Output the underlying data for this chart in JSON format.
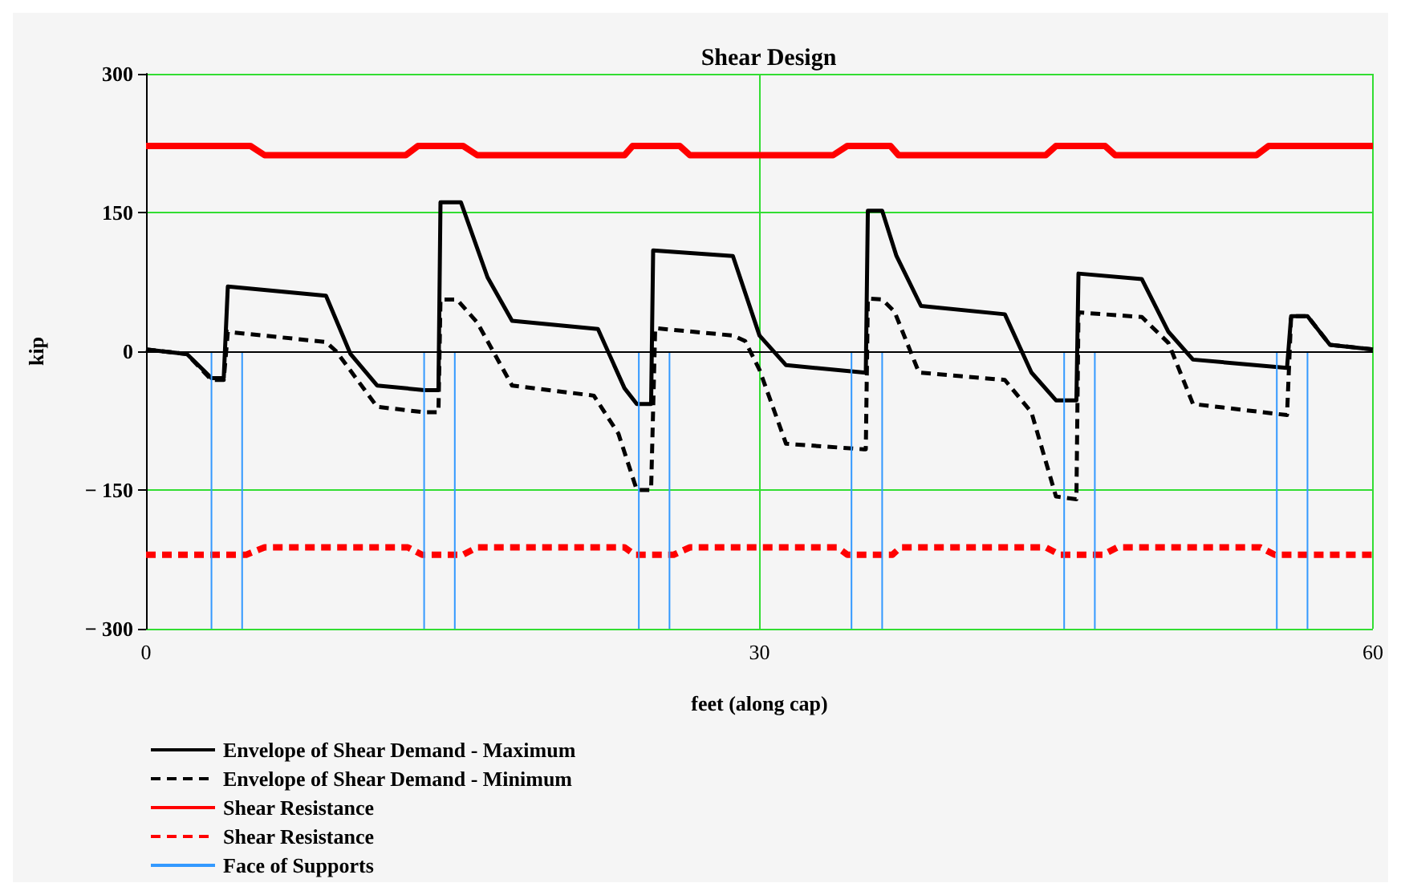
{
  "chart_data": {
    "type": "line",
    "title": "Shear Design",
    "xlabel": "feet (along cap)",
    "ylabel": "kip",
    "xlim": [
      0,
      60
    ],
    "xticks": [
      0,
      30,
      60
    ],
    "ylim": [
      -300,
      300
    ],
    "yticks": [
      300,
      150,
      0,
      {
        "value": -150,
        "label": "− 150"
      },
      {
        "value": -300,
        "label": "− 300"
      }
    ],
    "grid": true,
    "legend": "bottom left",
    "marker": "none",
    "ref_lines": [
      {
        "axis": "y",
        "value": 0,
        "color": "#000000"
      }
    ],
    "series": [
      {
        "name": "Envelope of Shear Demand - Maximum",
        "color": "#000000",
        "line_style": "solid",
        "x": [
          0,
          2,
          3.2,
          3.8,
          4,
          8.8,
          10,
          11.3,
          13.6,
          14.3,
          14.4,
          15.4,
          16.7,
          17.9,
          22.1,
          23.4,
          24,
          24.7,
          24.8,
          28.7,
          30,
          31.3,
          35.1,
          35.2,
          35.3,
          36,
          36.7,
          37.9,
          42,
          43.3,
          44.5,
          45.5,
          45.6,
          48.7,
          50,
          51.2,
          55.8,
          56,
          56.8,
          57.9,
          60
        ],
        "values": [
          2,
          -3,
          -29,
          -29,
          70,
          60,
          -3,
          -37,
          -42,
          -42,
          161,
          161,
          80,
          33,
          24,
          -40,
          -57,
          -57,
          109,
          103,
          17,
          -15,
          -23,
          -23,
          152,
          152,
          103,
          49,
          40,
          -23,
          -53,
          -53,
          84,
          78,
          21,
          -9,
          -18,
          38,
          38,
          7,
          2
        ]
      },
      {
        "name": "Envelope of Shear Demand - Minimum",
        "color": "#000000",
        "line_style": "dashed",
        "x": [
          0,
          2,
          3.2,
          3.8,
          4,
          8.8,
          9.3,
          11.3,
          13.6,
          14.3,
          14.4,
          15.2,
          16.2,
          17.9,
          21.9,
          23.1,
          24,
          24.7,
          24.9,
          28.7,
          29.3,
          30,
          31.3,
          35.1,
          35.2,
          35.3,
          36,
          36.6,
          37.8,
          42,
          43.3,
          44.5,
          45.5,
          45.6,
          48.7,
          50,
          51.2,
          55.8,
          56,
          56.8,
          57.9,
          60
        ],
        "values": [
          2,
          -3,
          -31,
          -31,
          21,
          10,
          0,
          -60,
          -66,
          -66,
          56,
          56,
          31,
          -37,
          -48,
          -89,
          -150,
          -150,
          25,
          17,
          11,
          -20,
          -100,
          -106,
          -106,
          57,
          56,
          43,
          -23,
          -31,
          -66,
          -157,
          -160,
          42,
          37,
          9,
          -57,
          -69,
          38,
          38,
          7,
          2
        ]
      },
      {
        "name": "Shear Resistance",
        "color": "#ff0000",
        "line_style": "solid",
        "x": [
          0,
          5.1,
          5.8,
          12.7,
          13.3,
          15.5,
          16.2,
          23.4,
          23.8,
          26.1,
          26.6,
          33.6,
          34.3,
          36.4,
          36.8,
          44,
          44.5,
          46.9,
          47.4,
          54.3,
          54.9,
          60
        ],
        "values": [
          222,
          222,
          212,
          212,
          222,
          222,
          212,
          212,
          222,
          222,
          212,
          212,
          222,
          222,
          212,
          212,
          222,
          222,
          212,
          212,
          222,
          222
        ]
      },
      {
        "name": "Shear Resistance",
        "color": "#ff0000",
        "line_style": "dashed",
        "x": [
          0,
          4.9,
          5.8,
          12.8,
          13.5,
          15.5,
          16.2,
          23.4,
          23.9,
          25.8,
          26.6,
          33.8,
          34.3,
          36.5,
          36.9,
          44,
          44.7,
          46.8,
          47.5,
          54.5,
          55.2,
          60
        ],
        "values": [
          -220,
          -220,
          -212,
          -212,
          -220,
          -220,
          -212,
          -212,
          -220,
          -220,
          -212,
          -212,
          -220,
          -220,
          -212,
          -212,
          -220,
          -220,
          -212,
          -212,
          -220,
          -220
        ]
      },
      {
        "name": "Face of Supports",
        "color": "#3399ff",
        "line_style": "solid",
        "x": [
          3.2,
          3.2,
          null,
          4.7,
          4.7,
          null,
          13.6,
          13.6,
          null,
          15.1,
          15.1,
          null,
          24.1,
          24.1,
          null,
          25.6,
          25.6,
          null,
          34.5,
          34.5,
          null,
          36,
          36,
          null,
          44.9,
          44.9,
          null,
          46.4,
          46.4,
          null,
          55.3,
          55.3,
          null,
          56.8,
          56.8
        ],
        "values": [
          0,
          -300,
          null,
          0,
          -300,
          null,
          0,
          -300,
          null,
          0,
          -300,
          null,
          0,
          -300,
          null,
          0,
          -300,
          null,
          0,
          -300,
          null,
          0,
          -300,
          null,
          0,
          -300,
          null,
          0,
          -300,
          null,
          0,
          -300,
          null,
          0,
          -300
        ]
      }
    ]
  }
}
